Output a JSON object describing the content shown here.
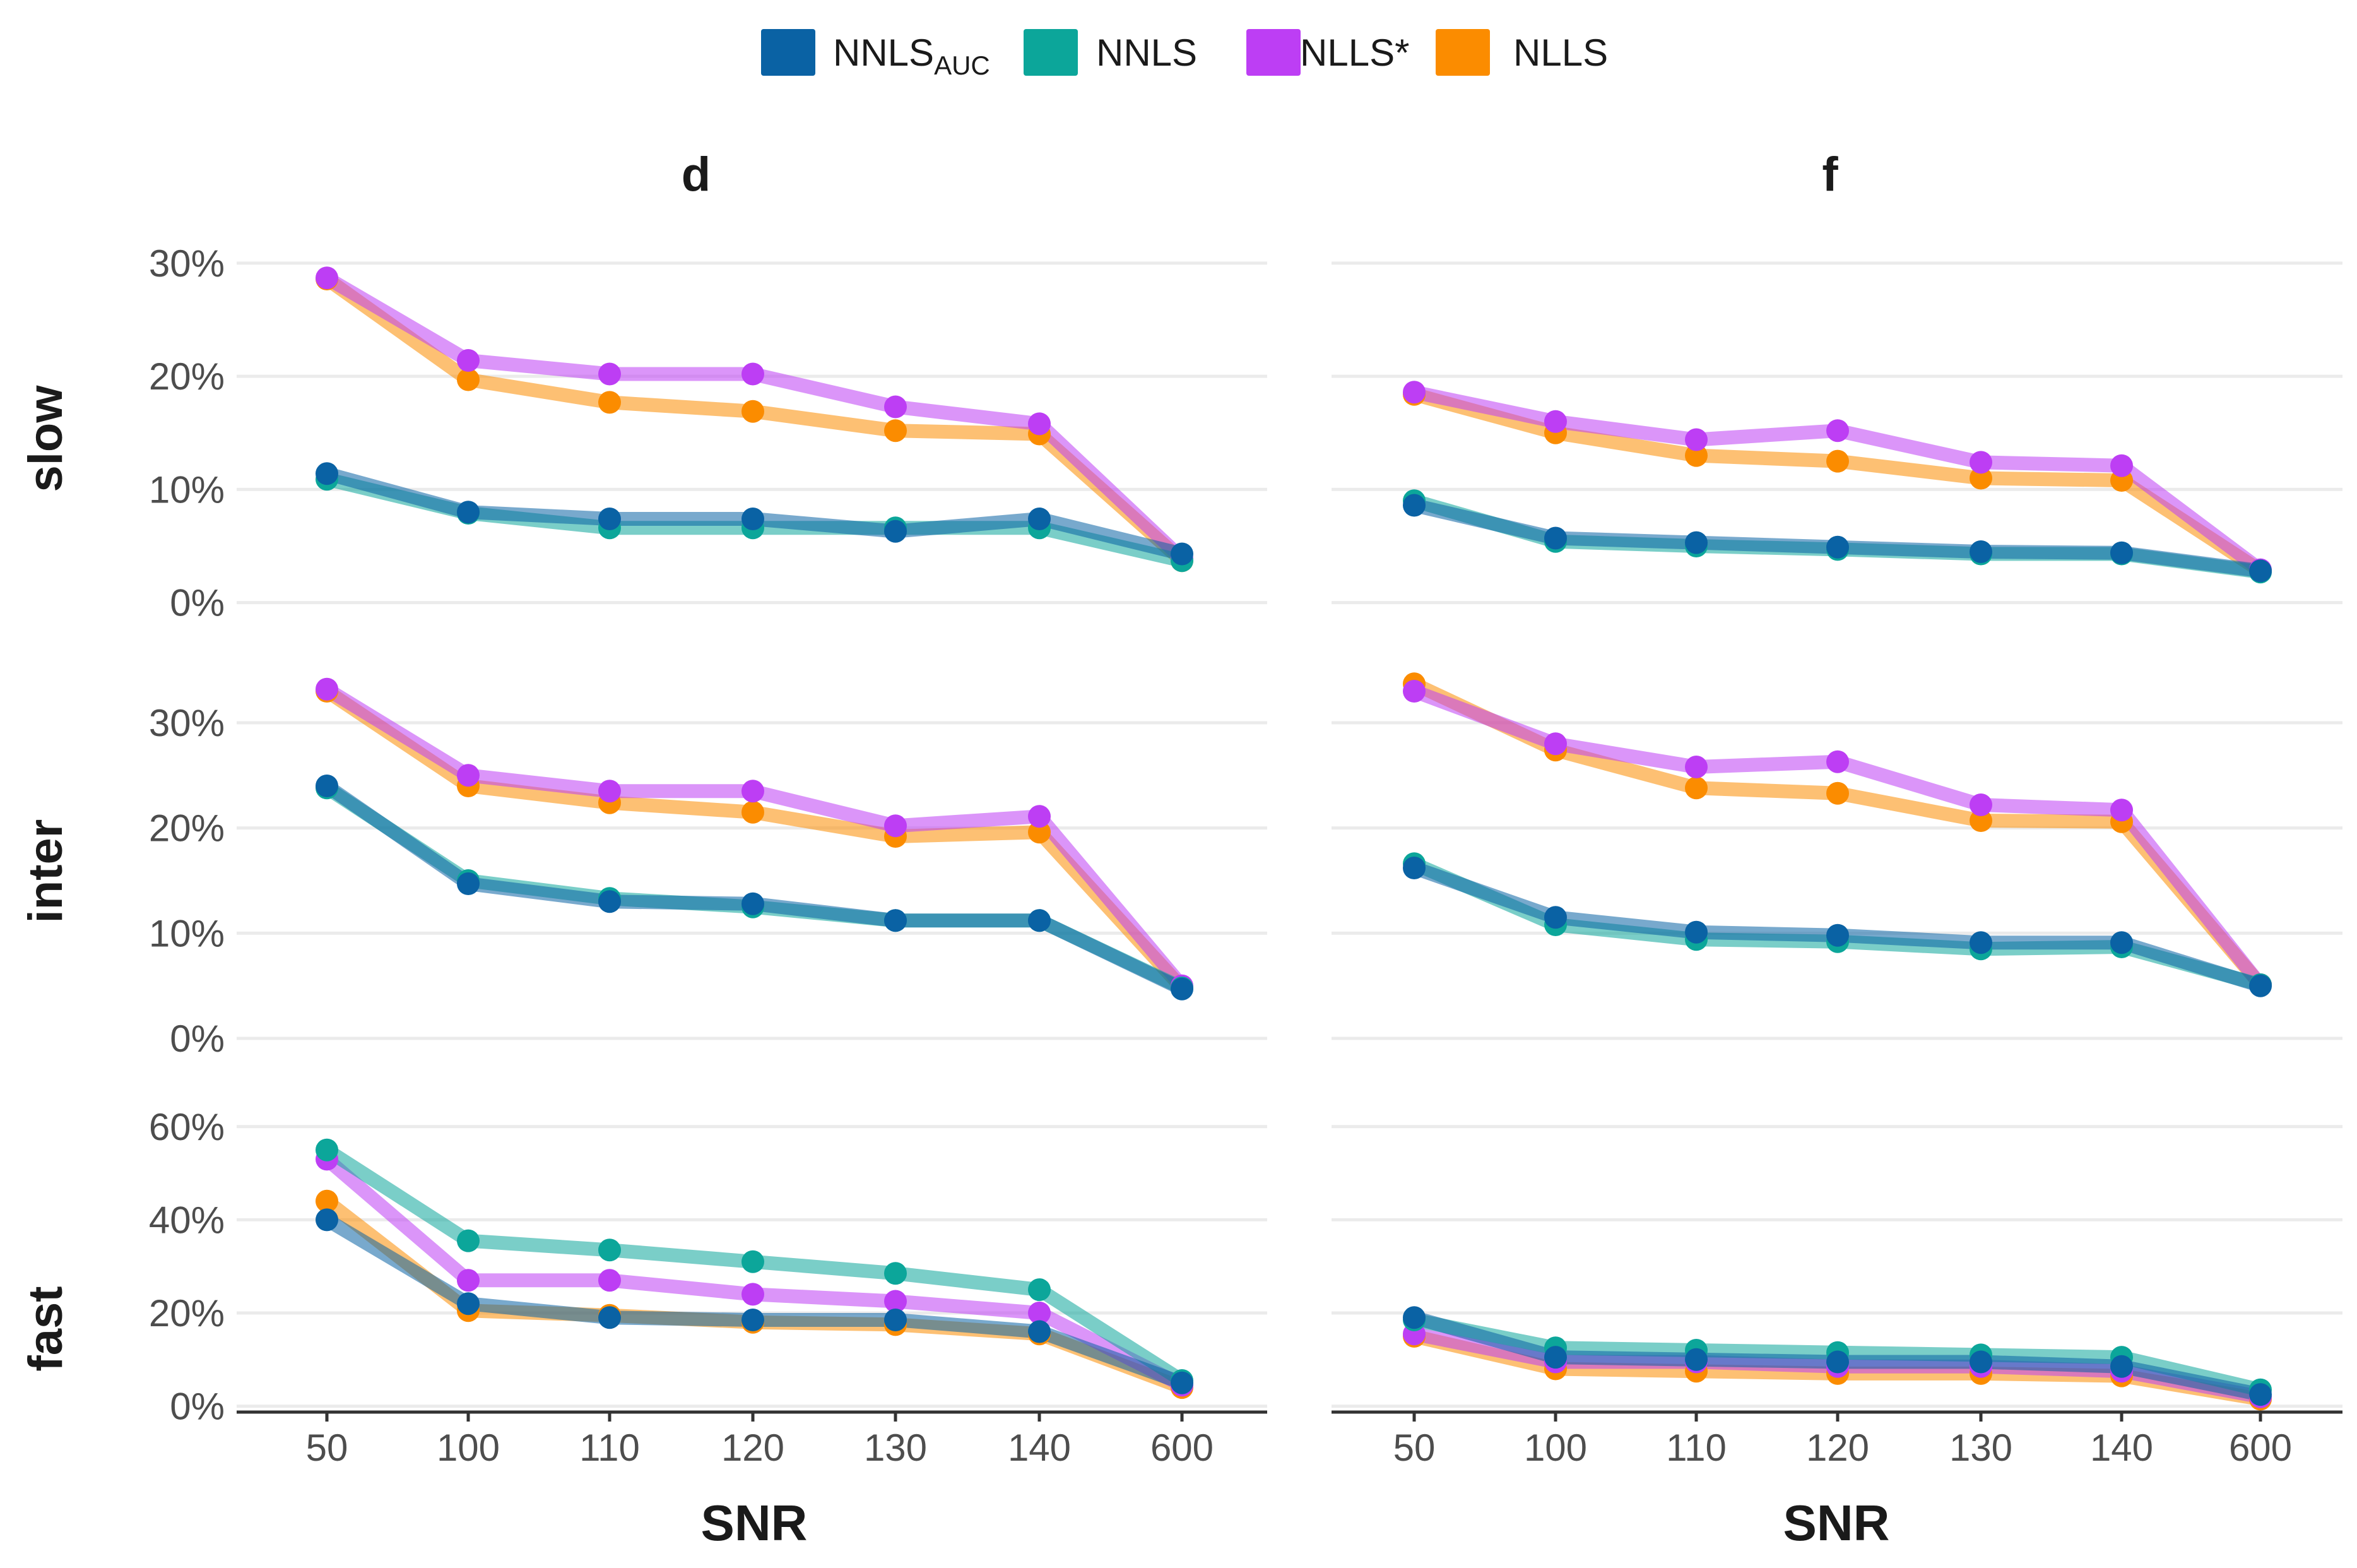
{
  "chart_data": {
    "type": "line",
    "x": [
      "50",
      "100",
      "110",
      "120",
      "130",
      "140",
      "600"
    ],
    "xlabel": "SNR",
    "columns": [
      "d",
      "f"
    ],
    "rows": [
      "slow",
      "inter",
      "fast"
    ],
    "legend": {
      "position": "top",
      "entries": [
        {
          "id": "NNLSAUC",
          "label_main": "NNLS",
          "label_sub": "AUC"
        },
        {
          "id": "NNLS",
          "label_main": "NNLS"
        },
        {
          "id": "NLLSstar",
          "label_main": "NLLS*"
        },
        {
          "id": "NLLS",
          "label_main": "NLLS"
        }
      ]
    },
    "colors": {
      "NNLSAUC": "#0a62a4",
      "NNLS": "#0ca69a",
      "NLLSstar": "#bd3ef4",
      "NLLS": "#fb8c00"
    },
    "draw_order": [
      "NLLS",
      "NLLSstar",
      "NNLS",
      "NNLSAUC"
    ],
    "row_axes": {
      "slow": {
        "ylim": [
          -0.3,
          31.5
        ],
        "ticks": [
          0,
          10,
          20,
          30
        ],
        "tick_labels": [
          "0%",
          "10%",
          "20%",
          "30%"
        ]
      },
      "inter": {
        "ylim": [
          -0.3,
          34.5
        ],
        "ticks": [
          0,
          10,
          20,
          30
        ],
        "tick_labels": [
          "0%",
          "10%",
          "20%",
          "30%"
        ]
      },
      "fast": {
        "ylim": [
          -0.6,
          62
        ],
        "ticks": [
          0,
          20,
          40,
          60
        ],
        "tick_labels": [
          "0%",
          "20%",
          "40%",
          "60%"
        ]
      }
    },
    "panels": [
      {
        "column": "d",
        "row": "slow",
        "series": [
          {
            "name": "NNLSAUC",
            "values": [
              11.4,
              8.0,
              7.4,
              7.4,
              6.3,
              7.4,
              4.3
            ]
          },
          {
            "name": "NNLS",
            "values": [
              10.9,
              7.9,
              6.6,
              6.6,
              6.6,
              6.6,
              3.7
            ]
          },
          {
            "name": "NLLSstar",
            "values": [
              28.7,
              21.4,
              20.2,
              20.2,
              17.3,
              15.8,
              3.9
            ]
          },
          {
            "name": "NLLS",
            "values": [
              28.6,
              19.7,
              17.7,
              16.9,
              15.2,
              14.9,
              3.7
            ]
          }
        ]
      },
      {
        "column": "f",
        "row": "slow",
        "series": [
          {
            "name": "NNLSAUC",
            "values": [
              8.6,
              5.7,
              5.3,
              4.9,
              4.5,
              4.4,
              2.8
            ]
          },
          {
            "name": "NNLS",
            "values": [
              9.0,
              5.4,
              5.0,
              4.7,
              4.3,
              4.3,
              2.7
            ]
          },
          {
            "name": "NLLSstar",
            "values": [
              18.6,
              16.0,
              14.4,
              15.2,
              12.4,
              12.1,
              2.9
            ]
          },
          {
            "name": "NLLS",
            "values": [
              18.4,
              15.0,
              13.0,
              12.5,
              11.0,
              10.8,
              2.8
            ]
          }
        ]
      },
      {
        "column": "d",
        "row": "inter",
        "series": [
          {
            "name": "NNLSAUC",
            "values": [
              24.0,
              14.7,
              13.0,
              12.8,
              11.2,
              11.2,
              4.7
            ]
          },
          {
            "name": "NNLS",
            "values": [
              23.8,
              15.0,
              13.3,
              12.5,
              11.2,
              11.2,
              4.8
            ]
          },
          {
            "name": "NLLSstar",
            "values": [
              33.2,
              25.0,
              23.5,
              23.5,
              20.2,
              21.1,
              5.0
            ]
          },
          {
            "name": "NLLS",
            "values": [
              33.0,
              24.0,
              22.4,
              21.5,
              19.2,
              19.6,
              4.8
            ]
          }
        ]
      },
      {
        "column": "f",
        "row": "inter",
        "series": [
          {
            "name": "NNLSAUC",
            "values": [
              16.2,
              11.5,
              10.1,
              9.8,
              9.1,
              9.1,
              5.0
            ]
          },
          {
            "name": "NNLS",
            "values": [
              16.6,
              10.8,
              9.4,
              9.2,
              8.5,
              8.7,
              5.1
            ]
          },
          {
            "name": "NLLSstar",
            "values": [
              33.0,
              28.0,
              25.8,
              26.3,
              22.2,
              21.7,
              5.1
            ]
          },
          {
            "name": "NLLS",
            "values": [
              33.7,
              27.4,
              23.8,
              23.3,
              20.7,
              20.6,
              5.1
            ]
          }
        ]
      },
      {
        "column": "d",
        "row": "fast",
        "series": [
          {
            "name": "NNLSAUC",
            "values": [
              40.0,
              22.0,
              19.0,
              18.5,
              18.5,
              16.0,
              5.0
            ]
          },
          {
            "name": "NNLS",
            "values": [
              55.0,
              35.5,
              33.5,
              31.0,
              28.5,
              25.0,
              5.5
            ]
          },
          {
            "name": "NLLSstar",
            "values": [
              53.0,
              27.0,
              27.0,
              24.0,
              22.5,
              20.0,
              4.5
            ]
          },
          {
            "name": "NLLS",
            "values": [
              44.0,
              20.5,
              19.5,
              18.0,
              17.5,
              15.5,
              4.0
            ]
          }
        ]
      },
      {
        "column": "f",
        "row": "fast",
        "series": [
          {
            "name": "NNLSAUC",
            "values": [
              19.0,
              10.5,
              10.0,
              9.5,
              9.5,
              8.5,
              2.5
            ]
          },
          {
            "name": "NNLS",
            "values": [
              18.5,
              12.5,
              12.0,
              11.5,
              11.0,
              10.5,
              3.5
            ]
          },
          {
            "name": "NLLSstar",
            "values": [
              15.5,
              9.5,
              9.5,
              8.5,
              8.5,
              7.5,
              2.0
            ]
          },
          {
            "name": "NLLS",
            "values": [
              15.0,
              8.0,
              7.5,
              7.0,
              7.0,
              6.5,
              1.5
            ]
          }
        ]
      }
    ]
  }
}
